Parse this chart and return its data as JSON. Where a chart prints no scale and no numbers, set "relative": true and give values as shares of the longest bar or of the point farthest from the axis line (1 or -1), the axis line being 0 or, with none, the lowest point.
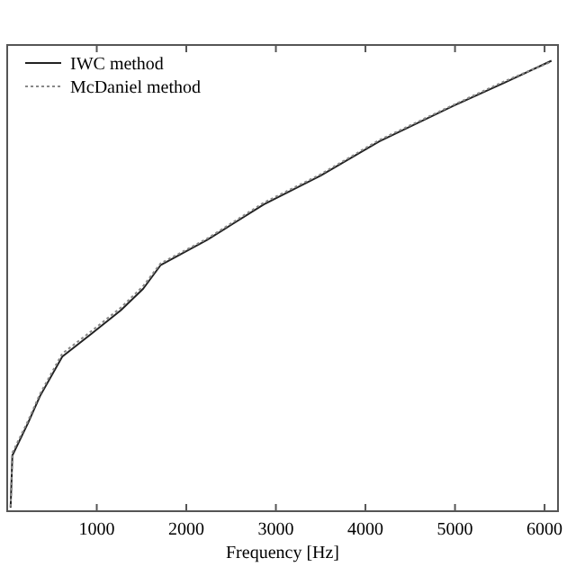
{
  "chart_data": {
    "type": "line",
    "relative": true,
    "xlabel": "Frequency [Hz]",
    "xlim": [
      0,
      6150
    ],
    "xticks": [
      1000,
      2000,
      3000,
      4000,
      5000,
      6000
    ],
    "legend": "top left",
    "grid": false,
    "series": [
      {
        "name": "IWC method",
        "color": "#222222",
        "line_style": "solid",
        "x": [
          38,
          58,
          231,
          365,
          615,
          942,
          1269,
          1519,
          1712,
          2231,
          2865,
          3500,
          4154,
          4981,
          5558,
          6077
        ],
        "values": [
          0.008,
          0.124,
          0.195,
          0.255,
          0.343,
          0.394,
          0.446,
          0.494,
          0.546,
          0.602,
          0.681,
          0.745,
          0.821,
          0.9,
          0.952,
          1.0
        ]
      },
      {
        "name": "McDaniel method",
        "color": "#888888",
        "line_style": "dotted",
        "x": [
          38,
          58,
          231,
          365,
          615,
          942,
          1269,
          1519,
          1712,
          2231,
          2865,
          3500,
          4154,
          4981,
          5558,
          6077
        ],
        "values": [
          0.01,
          0.13,
          0.2,
          0.26,
          0.35,
          0.4,
          0.452,
          0.5,
          0.55,
          0.605,
          0.685,
          0.748,
          0.824,
          0.902,
          0.955,
          0.998
        ]
      }
    ]
  }
}
